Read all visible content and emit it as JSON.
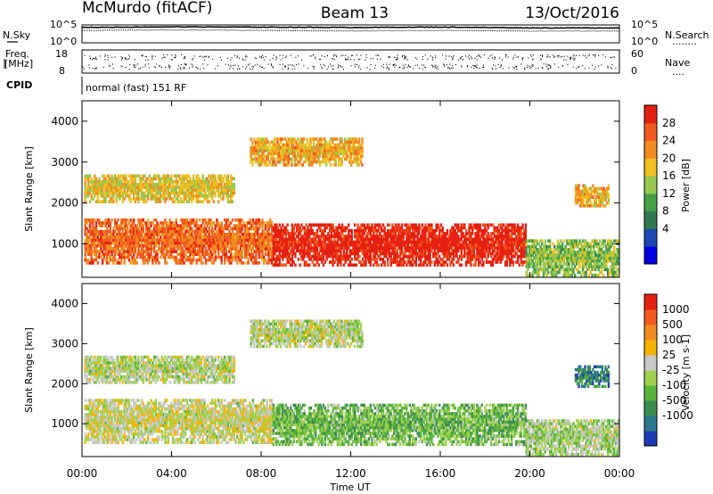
{
  "header": {
    "station": "McMurdo (fitACF)",
    "beam": "Beam 13",
    "date": "13/Oct/2016"
  },
  "top_panel": {
    "left_label": "N.Sky",
    "right_label": "N.Search",
    "right_legend": "........",
    "left_ticks": [
      "10^5",
      "10^0"
    ],
    "right_ticks": [
      "10^5",
      "10^0"
    ]
  },
  "freq_panel": {
    "left_label_1": "Freq.",
    "left_label_2": "[MHz]",
    "left_ticks": [
      "18",
      "8"
    ],
    "right_label": "Nave",
    "right_legend": "....",
    "right_ticks": [
      "60",
      "0"
    ]
  },
  "cpid": {
    "label": "CPID",
    "text": "normal (fast) 151 RF"
  },
  "axes": {
    "ylabel": "Slant Range [km]",
    "xlabel": "Time UT",
    "yticks": [
      "4000",
      "3000",
      "2000",
      "1000"
    ],
    "xticks": [
      "00:00",
      "04:00",
      "08:00",
      "12:00",
      "16:00",
      "20:00",
      "00:00"
    ]
  },
  "colorbars": {
    "power": {
      "label": "Power [dB]",
      "ticks": [
        "28",
        "24",
        "20",
        "16",
        "12",
        "8",
        "4"
      ],
      "colors": [
        "#0000e0",
        "#1e46b4",
        "#327850",
        "#46a046",
        "#96c850",
        "#f0c020",
        "#f08c20",
        "#f05a20",
        "#e62010"
      ]
    },
    "velocity": {
      "label": "Velocity [m s-1]",
      "ticks": [
        "1000",
        "500",
        "100",
        "25",
        "-25",
        "-100",
        "-500",
        "-1000"
      ],
      "colors": [
        "#1e3cb4",
        "#2a7890",
        "#3c8c50",
        "#5ab43c",
        "#a0d050",
        "#c8c8c8",
        "#f5b400",
        "#f08c20",
        "#f05a20",
        "#e62010"
      ]
    }
  },
  "chart_data": [
    {
      "type": "line",
      "title": "N.Sky / N.Search",
      "x": [
        "00:00",
        "04:00",
        "08:00",
        "12:00",
        "16:00",
        "20:00",
        "00:00"
      ],
      "yscale": "log",
      "ylim": [
        1,
        100000
      ],
      "series": [
        {
          "name": "N.Sky",
          "values": [
            20000,
            30000,
            25000,
            20000,
            25000,
            15000,
            15000
          ]
        },
        {
          "name": "N.Search",
          "values": [
            3000,
            4000,
            3000,
            2000,
            3000,
            2000,
            2000
          ]
        }
      ]
    },
    {
      "type": "scatter",
      "title": "Freq. [MHz] / Nave",
      "x": [
        "00:00",
        "04:00",
        "08:00",
        "12:00",
        "16:00",
        "20:00",
        "00:00"
      ],
      "ylim": [
        8,
        18
      ],
      "series": [
        {
          "name": "Freq.",
          "values": [
            11,
            11,
            11,
            11,
            11,
            11,
            11
          ]
        },
        {
          "name": "Nave",
          "values": [
            15,
            15,
            15,
            15,
            15,
            15,
            15
          ]
        }
      ]
    },
    {
      "type": "heatmap",
      "title": "Power [dB]",
      "xlabel": "Time UT",
      "ylabel": "Slant Range [km]",
      "xlim": [
        "00:00",
        "24:00"
      ],
      "ylim": [
        180,
        4500
      ],
      "zlim": [
        0,
        30
      ],
      "blobs": [
        {
          "t0": 0.1,
          "t1": 8.5,
          "r0": 500,
          "r1": 1600,
          "z": 24
        },
        {
          "t0": 8.5,
          "t1": 19.8,
          "r0": 450,
          "r1": 1500,
          "z": 29
        },
        {
          "t0": 0.1,
          "t1": 6.8,
          "r0": 2000,
          "r1": 2700,
          "z": 18
        },
        {
          "t0": 7.5,
          "t1": 12.5,
          "r0": 2900,
          "r1": 3600,
          "z": 20
        },
        {
          "t0": 19.8,
          "t1": 24.0,
          "r0": 200,
          "r1": 1100,
          "z": 14
        },
        {
          "t0": 22.0,
          "t1": 23.5,
          "r0": 1900,
          "r1": 2400,
          "z": 20
        }
      ]
    },
    {
      "type": "heatmap",
      "title": "Velocity [m s-1]",
      "xlabel": "Time UT",
      "ylabel": "Slant Range [km]",
      "xlim": [
        "00:00",
        "24:00"
      ],
      "ylim": [
        180,
        4500
      ],
      "zlim": [
        -1000,
        1000
      ],
      "blobs": [
        {
          "t0": 0.1,
          "t1": 8.5,
          "r0": 500,
          "r1": 1600,
          "z": 60
        },
        {
          "t0": 8.5,
          "t1": 19.8,
          "r0": 450,
          "r1": 1500,
          "z": -250
        },
        {
          "t0": 0.1,
          "t1": 6.8,
          "r0": 2000,
          "r1": 2700,
          "z": 0
        },
        {
          "t0": 7.5,
          "t1": 12.5,
          "r0": 2900,
          "r1": 3600,
          "z": 0
        },
        {
          "t0": 19.8,
          "t1": 24.0,
          "r0": 200,
          "r1": 1100,
          "z": -60
        },
        {
          "t0": 22.0,
          "t1": 23.5,
          "r0": 1900,
          "r1": 2400,
          "z": -600
        }
      ]
    }
  ]
}
